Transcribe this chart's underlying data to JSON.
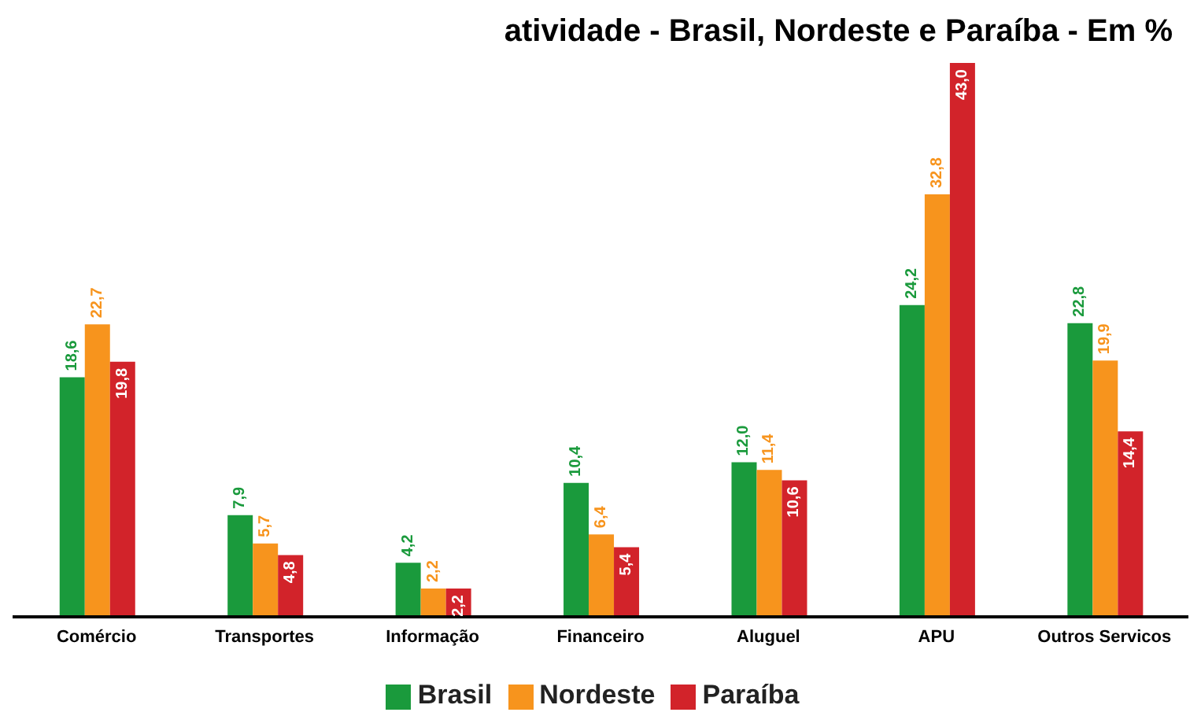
{
  "chart_data": {
    "type": "bar",
    "title": "atividade - Brasil, Nordeste e Paraíba - Em %",
    "categories": [
      "Comércio",
      "Transportes",
      "Informação",
      "Financeiro",
      "Aluguel",
      "APU",
      "Outros Servicos"
    ],
    "series": [
      {
        "name": "Brasil",
        "color": "#1a9a3c",
        "values": [
          18.6,
          7.9,
          4.2,
          10.4,
          12.0,
          24.2,
          22.8
        ],
        "value_labels": [
          "18,6",
          "7,9",
          "4,2",
          "10,4",
          "12,0",
          "24,2",
          "22,8"
        ]
      },
      {
        "name": "Nordeste",
        "color": "#f7941d",
        "values": [
          22.7,
          5.7,
          2.2,
          6.4,
          11.4,
          32.8,
          19.9
        ],
        "value_labels": [
          "22,7",
          "5,7",
          "2,2",
          "6,4",
          "11,4",
          "32,8",
          "19,9"
        ]
      },
      {
        "name": "Paraíba",
        "color": "#d2232a",
        "values": [
          19.8,
          4.8,
          2.2,
          5.4,
          10.6,
          43.0,
          14.4
        ],
        "value_labels": [
          "19,8",
          "4,8",
          "2,2",
          "5,4",
          "10,6",
          "43,0",
          "14,4"
        ]
      }
    ],
    "legend": "bottom",
    "grid": false
  }
}
